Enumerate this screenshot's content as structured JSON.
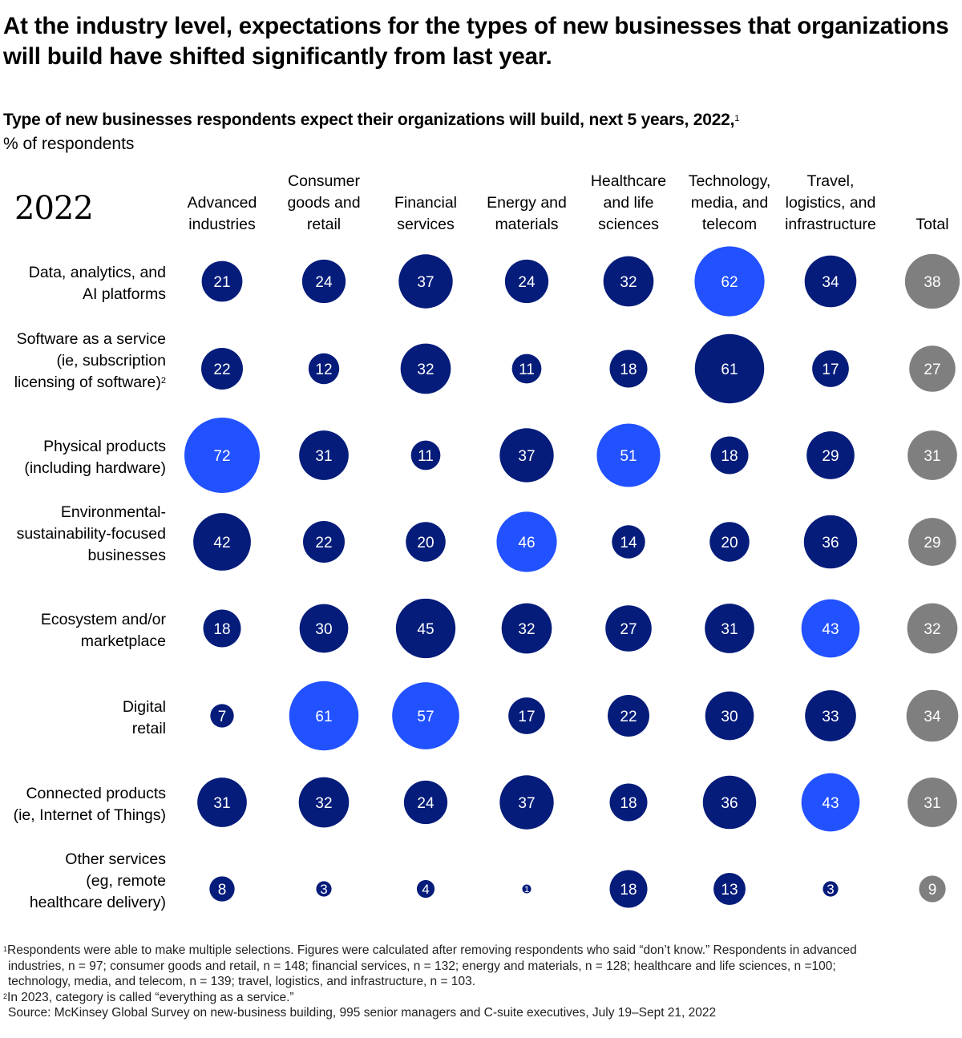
{
  "headline": "At the industry level, expectations for the types of new businesses that organizations will build have shifted significantly from last year.",
  "subtitle": "Type of new businesses respondents expect their organizations will build, next 5 years, 2022,",
  "subtitle_footnote_ref": "1",
  "unit_label": "% of respondents",
  "year_label": "2022",
  "colors": {
    "default_bubble": "#051c7a",
    "highlight_bubble": "#2251ff",
    "total_bubble": "#7f7f7f",
    "bubble_text": "#ffffff"
  },
  "chart_data": {
    "type": "bubble-matrix",
    "title": "Type of new businesses respondents expect their organizations will build, next 5 years, 2022",
    "unit": "% of respondents",
    "columns": [
      "Advanced\nindustries",
      "Consumer\ngoods and\nretail",
      "Financial\nservices",
      "Energy and\nmaterials",
      "Healthcare\nand life\nsciences",
      "Technology,\nmedia, and\ntelecom",
      "Travel,\nlogistics, and\ninfrastructure",
      "Total"
    ],
    "rows": [
      {
        "label": "Data, analytics, and\nAI platforms",
        "footnote": "",
        "values": [
          21,
          24,
          37,
          24,
          32,
          62,
          34,
          38
        ],
        "highlight": [
          false,
          false,
          false,
          false,
          false,
          true,
          false,
          false
        ]
      },
      {
        "label": "Software as a service\n(ie, subscription\nlicensing of software)",
        "footnote": "2",
        "values": [
          22,
          12,
          32,
          11,
          18,
          61,
          17,
          27
        ],
        "highlight": [
          false,
          false,
          false,
          false,
          false,
          false,
          false,
          false
        ]
      },
      {
        "label": "Physical products\n(including hardware)",
        "footnote": "",
        "values": [
          72,
          31,
          11,
          37,
          51,
          18,
          29,
          31
        ],
        "highlight": [
          true,
          false,
          false,
          false,
          true,
          false,
          false,
          false
        ]
      },
      {
        "label": "Environmental-\nsustainability-focused\nbusinesses",
        "footnote": "",
        "values": [
          42,
          22,
          20,
          46,
          14,
          20,
          36,
          29
        ],
        "highlight": [
          false,
          false,
          false,
          true,
          false,
          false,
          false,
          false
        ]
      },
      {
        "label": "Ecosystem and/or\nmarketplace",
        "footnote": "",
        "values": [
          18,
          30,
          45,
          32,
          27,
          31,
          43,
          32
        ],
        "highlight": [
          false,
          false,
          false,
          false,
          false,
          false,
          true,
          false
        ]
      },
      {
        "label": "Digital\nretail",
        "footnote": "",
        "values": [
          7,
          61,
          57,
          17,
          22,
          30,
          33,
          34
        ],
        "highlight": [
          false,
          true,
          true,
          false,
          false,
          false,
          false,
          false
        ]
      },
      {
        "label": "Connected products\n(ie, Internet of Things)",
        "footnote": "",
        "values": [
          31,
          32,
          24,
          37,
          18,
          36,
          43,
          31
        ],
        "highlight": [
          false,
          false,
          false,
          false,
          false,
          false,
          true,
          false
        ]
      },
      {
        "label": "Other services\n(eg, remote\nhealthcare delivery)",
        "footnote": "",
        "values": [
          8,
          3,
          4,
          1,
          18,
          13,
          3,
          9
        ],
        "highlight": [
          false,
          false,
          false,
          false,
          false,
          false,
          false,
          false
        ]
      }
    ],
    "total_column_index": 7,
    "size_encoding": "bubble area proportional to value"
  },
  "footnotes": {
    "note1_ref": "1",
    "note1_line1": "Respondents were able to make multiple selections. Figures were calculated after removing respondents who said “don’t know.” Respondents in advanced",
    "note1_line2": "industries, n = 97; consumer goods and retail, n = 148; financial services, n = 132; energy and materials, n = 128; healthcare and life sciences, n =100;",
    "note1_line3": "technology, media, and telecom, n = 139; travel, logistics, and infrastructure, n = 103.",
    "note2_ref": "2",
    "note2": "In 2023, category is called “everything as a service.”",
    "source": "Source: McKinsey Global Survey on new-business building, 995 senior managers and C-suite executives, July 19–Sept 21, 2022"
  }
}
